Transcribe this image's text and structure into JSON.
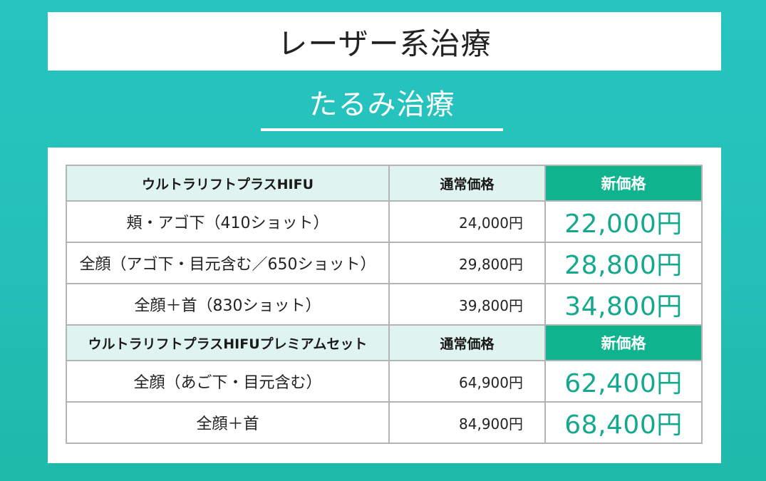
{
  "header": {
    "title": "レーザー系治療"
  },
  "section": {
    "title": "たるみ治療"
  },
  "tables": [
    {
      "heading": "ウルトラリフトプラスHIFU",
      "col_old": "通常価格",
      "col_new": "新価格",
      "rows": [
        {
          "name": "頬・アゴ下（410ショット）",
          "old": "24,000円",
          "new": "22,000円"
        },
        {
          "name": "全顔（アゴ下・目元含む／650ショット）",
          "old": "29,800円",
          "new": "28,800円"
        },
        {
          "name": "全顔＋首（830ショット）",
          "old": "39,800円",
          "new": "34,800円"
        }
      ]
    },
    {
      "heading": "ウルトラリフトプラスHIFUプレミアムセット",
      "col_old": "通常価格",
      "col_new": "新価格",
      "rows": [
        {
          "name": "全顔（あご下・目元含む）",
          "old": "64,900円",
          "new": "62,400円"
        },
        {
          "name": "全顔＋首",
          "old": "84,900円",
          "new": "68,400円"
        }
      ]
    }
  ],
  "colors": {
    "background": "#24c0b8",
    "header_cell": "#dff3ef",
    "new_price_header": "#0fb48f",
    "new_price_text": "#14a98c"
  }
}
